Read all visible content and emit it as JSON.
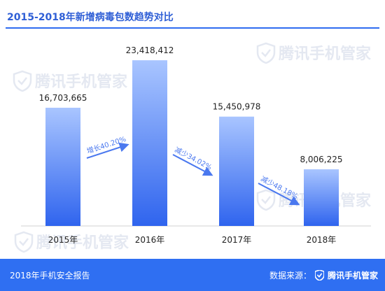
{
  "header": {
    "title": "2015-2018年新增病毒包数趋势对比"
  },
  "watermark": {
    "text": "腾讯手机管家"
  },
  "footer": {
    "report": "2018年手机安全报告",
    "source_label": "数据来源：",
    "source_brand": "腾讯手机管家"
  },
  "colors": {
    "accent": "#2f6ff2",
    "bar_top": "#a9c5ff",
    "bar_bottom": "#2f64ee",
    "annotation": "#4a78ef"
  },
  "chart_data": {
    "type": "bar",
    "categories": [
      "2015年",
      "2016年",
      "2017年",
      "2018年"
    ],
    "values": [
      16703665,
      23418412,
      15450978,
      8006225
    ],
    "value_labels": [
      "16,703,665",
      "23,418,412",
      "15,450,978",
      "8,006,225"
    ],
    "title": "2015-2018年新增病毒包数趋势对比",
    "xlabel": "",
    "ylabel": "",
    "ylim": [
      0,
      26000000
    ],
    "grid": false,
    "legend": "none",
    "annotations": [
      "增长40.20%",
      "减少34.02%",
      "减少48.18%"
    ]
  }
}
